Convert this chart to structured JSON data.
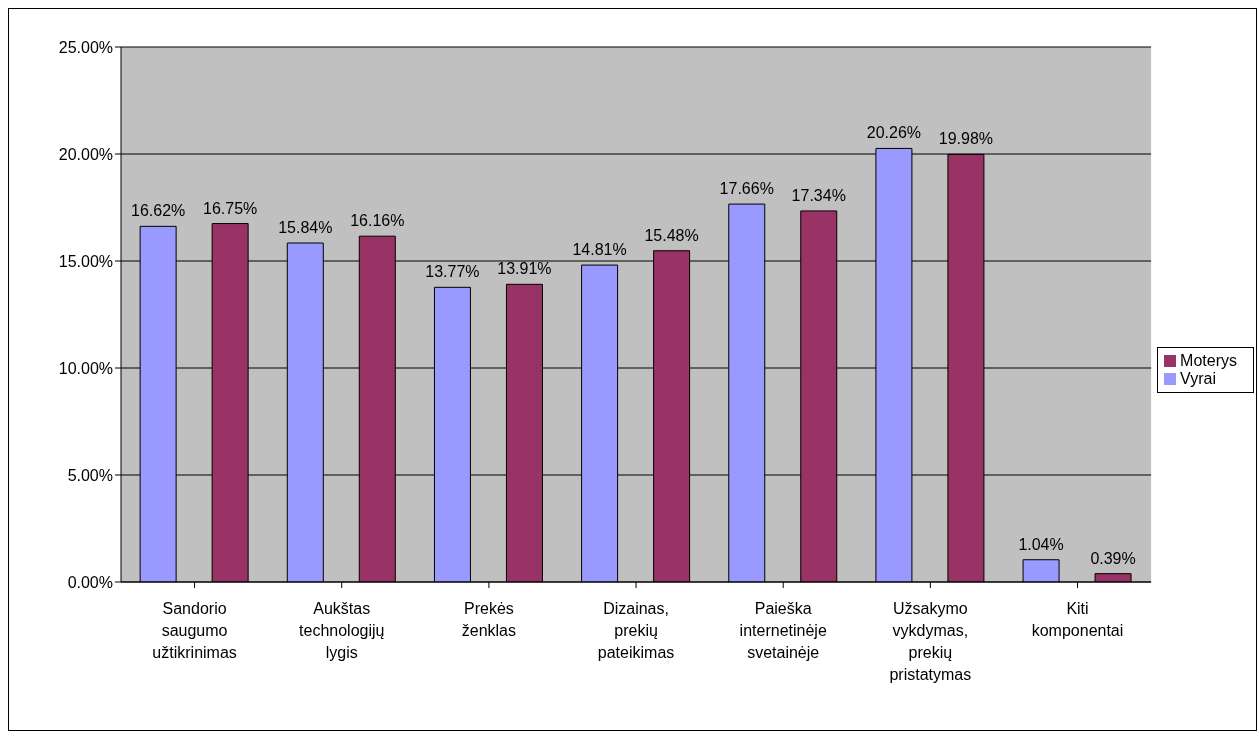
{
  "chart_data": {
    "type": "bar",
    "categories": [
      "Sandorio saugumo užtikrinimas",
      "Aukštas technologijų lygis",
      "Prekės ženklas",
      "Dizainas, prekių pateikimas",
      "Paieška internetinėje svetainėje",
      "Užsakymo vykdymas, prekių pristatymas",
      "Kiti komponentai"
    ],
    "series": [
      {
        "name": "Vyrai",
        "color": "#9999ff",
        "values": [
          16.62,
          15.84,
          13.77,
          14.81,
          17.66,
          20.26,
          1.04
        ],
        "value_labels": [
          "16.62%",
          "15.84%",
          "13.77%",
          "14.81%",
          "17.66%",
          "20.26%",
          "1.04%"
        ]
      },
      {
        "name": "Moterys",
        "color": "#993366",
        "values": [
          16.75,
          16.16,
          13.91,
          15.48,
          17.34,
          19.98,
          0.39
        ],
        "value_labels": [
          "16.75%",
          "16.16%",
          "13.91%",
          "15.48%",
          "17.34%",
          "19.98%",
          "0.39%"
        ]
      }
    ],
    "ylim": [
      0,
      25
    ],
    "yticks": [
      {
        "value": 0,
        "label": "0.00%"
      },
      {
        "value": 5,
        "label": "5.00%"
      },
      {
        "value": 10,
        "label": "10.00%"
      },
      {
        "value": 15,
        "label": "15.00%"
      },
      {
        "value": 20,
        "label": "20.00%"
      },
      {
        "value": 25,
        "label": "25.00%"
      }
    ],
    "grid": "y",
    "legend": "right"
  }
}
